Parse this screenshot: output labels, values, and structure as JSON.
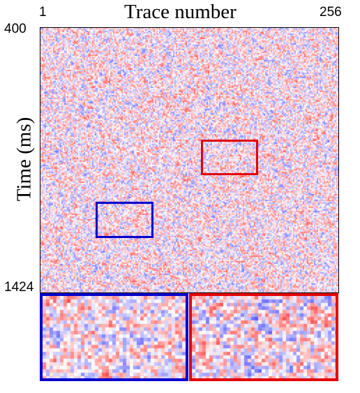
{
  "chart_data": {
    "type": "heatmap",
    "title": "",
    "xlabel": "Trace number",
    "ylabel": "Time (ms)",
    "x_range": [
      1,
      256
    ],
    "y_range": [
      400,
      1424
    ],
    "x_ticks": [
      "1",
      "256"
    ],
    "y_ticks": [
      "400",
      "1424"
    ],
    "colormap": [
      "#0000ff",
      "#ffffff",
      "#ff0000"
    ],
    "highlight_regions": [
      {
        "color": "#0000cc",
        "trace_range": [
          49,
          98
        ],
        "time_range_ms": [
          1076,
          1216
        ]
      },
      {
        "color": "#e30000",
        "trace_range": [
          139,
          188
        ],
        "time_range_ms": [
          838,
          974
        ]
      }
    ],
    "insets": [
      {
        "color": "#0000cc",
        "source": "blue region"
      },
      {
        "color": "#e30000",
        "source": "red region"
      }
    ]
  }
}
